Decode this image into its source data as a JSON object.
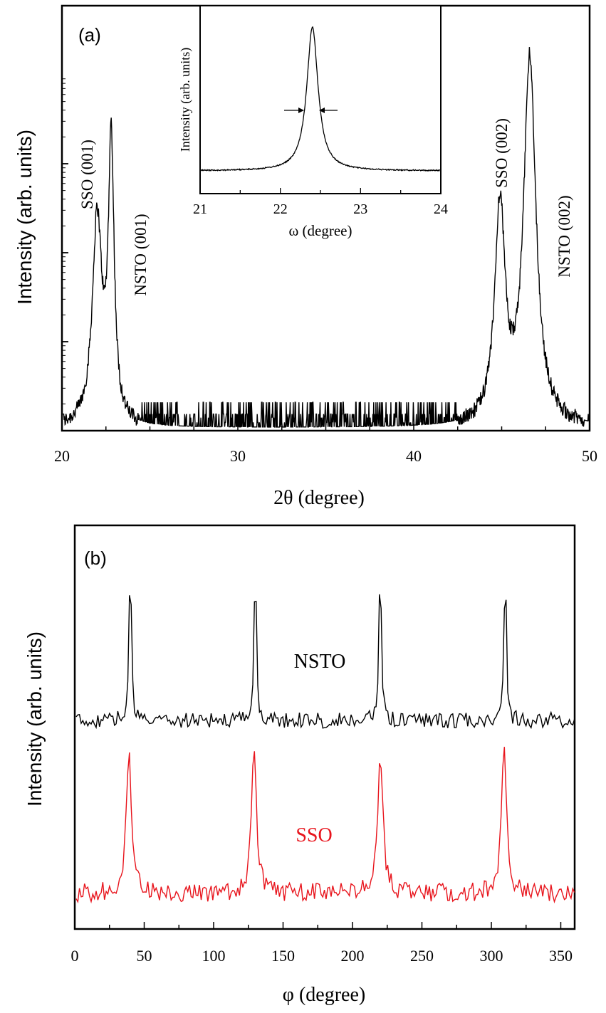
{
  "chart_data": [
    {
      "panel": "(a)",
      "type": "line",
      "xlabel": "2θ  (degree)",
      "ylabel": "Intensity (arb. units)",
      "yscale": "log",
      "xlim": [
        20,
        50
      ],
      "xticks": [
        "20",
        "30",
        "40",
        "50"
      ],
      "noise_floor_segment": [
        21.0,
        44.2
      ],
      "peaks": [
        {
          "label": "SSO (001)",
          "x": 22.0,
          "rel_height": 0.52
        },
        {
          "label": "NSTO (001)",
          "x": 22.8,
          "rel_height": 0.7
        },
        {
          "label": "SSO (002)",
          "x": 44.9,
          "rel_height": 0.55
        },
        {
          "label": "NSTO (002)",
          "x": 46.6,
          "rel_height": 0.93
        }
      ],
      "annotations": [
        "SSO (001)",
        "NSTO (001)",
        "SSO (002)",
        "NSTO (002)"
      ],
      "color": "#000000"
    },
    {
      "panel": "inset",
      "type": "line",
      "xlabel": "ω (degree)",
      "ylabel": "Intensity (arb. units)",
      "xlim": [
        21,
        24
      ],
      "xticks": [
        "21",
        "22",
        "23",
        "24"
      ],
      "peak_center": 22.4,
      "fwhm_arrows": true,
      "color": "#000000"
    },
    {
      "panel": "(b)",
      "type": "line",
      "xlabel": "φ (degree)",
      "ylabel": "Intensity (arb. units)",
      "xlim": [
        0,
        360
      ],
      "xticks": [
        "0",
        "50",
        "100",
        "150",
        "200",
        "250",
        "300",
        "350"
      ],
      "series": [
        {
          "name": "NSTO",
          "peaks_phi": [
            40,
            130,
            220,
            310
          ],
          "color": "#000000"
        },
        {
          "name": "SSO",
          "peaks_phi": [
            39,
            129,
            220,
            309
          ],
          "color": "#e8141c"
        }
      ]
    }
  ]
}
